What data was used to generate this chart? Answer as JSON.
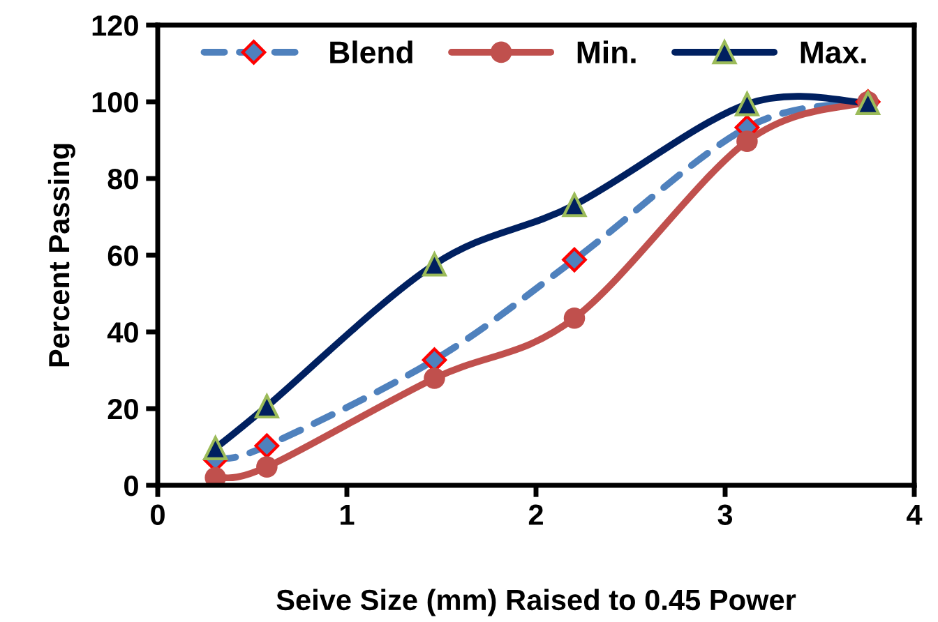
{
  "chart_data": {
    "type": "line",
    "xlabel": "Seive Size (mm) Raised to 0.45 Power",
    "ylabel": "Percent Passing",
    "xlim": [
      0,
      4
    ],
    "xticks": [
      0,
      1,
      2,
      3,
      4
    ],
    "ylim": [
      0,
      120
    ],
    "yticks": [
      0,
      20,
      40,
      60,
      80,
      100,
      120
    ],
    "grid": false,
    "legend": "top",
    "series": [
      {
        "name": "Blend",
        "color": "#4f81bd",
        "line_style": "dashed",
        "marker": "diamond",
        "x": [
          0.305,
          0.577,
          1.463,
          2.203,
          3.116,
          3.755
        ],
        "values": [
          6.7,
          10.3,
          32.7,
          58.8,
          93.3,
          100
        ]
      },
      {
        "name": "Min.",
        "color": "#c0504d",
        "line_style": "solid",
        "marker": "circle",
        "x": [
          0.305,
          0.577,
          1.463,
          2.203,
          3.116,
          3.755
        ],
        "values": [
          2.0,
          4.8,
          27.9,
          43.6,
          89.7,
          100
        ]
      },
      {
        "name": "Max.",
        "color": "#002060",
        "line_style": "solid",
        "marker": "triangle",
        "x": [
          0.305,
          0.577,
          1.463,
          2.203,
          3.116,
          3.755
        ],
        "values": [
          9.7,
          20.6,
          57.6,
          73.1,
          99.4,
          99.7
        ]
      }
    ]
  }
}
